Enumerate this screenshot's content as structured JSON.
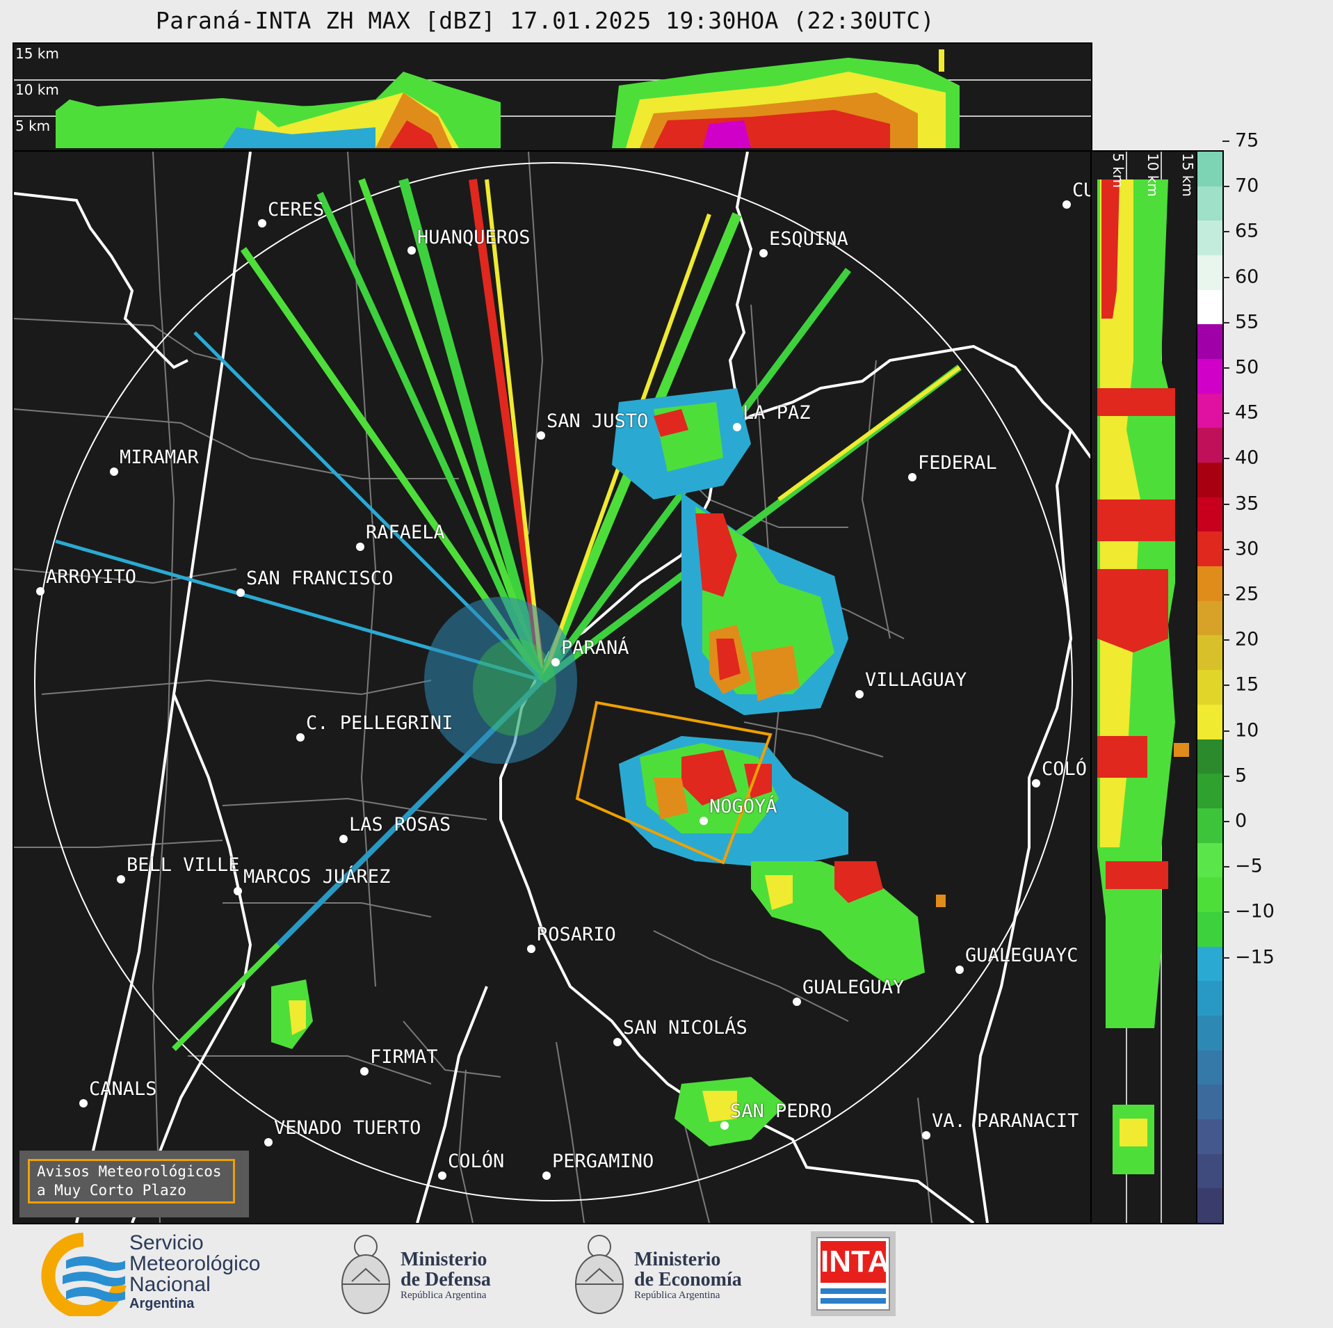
{
  "title": "Paraná-INTA ZH MAX [dBZ] 17.01.2025 19:30HOA (22:30UTC)",
  "top_profile": {
    "altitude_labels": [
      "15 km",
      "10 km",
      "5 km"
    ]
  },
  "right_profile": {
    "altitude_labels": [
      "5 km",
      "10 km",
      "15 km"
    ]
  },
  "colorbar": {
    "unit": "dBZ",
    "ticks": [
      "75",
      "70",
      "65",
      "60",
      "55",
      "50",
      "45",
      "40",
      "35",
      "30",
      "25",
      "20",
      "15",
      "10",
      "5",
      "0",
      "−5",
      "−10",
      "−15"
    ],
    "colors": [
      "#3a3d6b",
      "#3f4a7d",
      "#44588d",
      "#3d6a9c",
      "#3479a8",
      "#2e88b4",
      "#2899c4",
      "#2aaad2",
      "#3ed13e",
      "#4ede3a",
      "#5ae64a",
      "#3ec43a",
      "#2ea12e",
      "#2b8a2b",
      "#f0ea30",
      "#e2d52a",
      "#d8c02a",
      "#d8a228",
      "#e08c1a",
      "#e0281e",
      "#c8001e",
      "#a80010",
      "#c0105a",
      "#e010a0",
      "#d000c8",
      "#a000a8",
      "#ffffff",
      "#e8f6ee",
      "#c4ecdc",
      "#9ee0c8",
      "#7dd4b4"
    ]
  },
  "cities": [
    {
      "name": "CERES"
    },
    {
      "name": "HUANQUEROS"
    },
    {
      "name": "ESQUINA"
    },
    {
      "name": "CU"
    },
    {
      "name": "SAN JUSTO"
    },
    {
      "name": "LA PAZ"
    },
    {
      "name": "MIRAMAR"
    },
    {
      "name": "FEDERAL"
    },
    {
      "name": "RAFAELA"
    },
    {
      "name": "ARROYITO"
    },
    {
      "name": "SAN FRANCISCO"
    },
    {
      "name": "PARANÁ"
    },
    {
      "name": "VILLAGUAY"
    },
    {
      "name": "C. PELLEGRINI"
    },
    {
      "name": "COLÓ"
    },
    {
      "name": "NOGOYÁ"
    },
    {
      "name": "LAS ROSAS"
    },
    {
      "name": "BELL VILLE"
    },
    {
      "name": "MARCOS JUÁREZ"
    },
    {
      "name": "ROSARIO"
    },
    {
      "name": "GUALEGUAYC"
    },
    {
      "name": "GUALEGUAY"
    },
    {
      "name": "SAN NICOLÁS"
    },
    {
      "name": "FIRMAT"
    },
    {
      "name": "CANALS"
    },
    {
      "name": "SAN PEDRO"
    },
    {
      "name": "VENADO TUERTO"
    },
    {
      "name": "VA. PARANACIT"
    },
    {
      "name": "COLÓN"
    },
    {
      "name": "PERGAMINO"
    }
  ],
  "warning_box": {
    "line1": "Avisos Meteorológicos",
    "line2": "a Muy Corto Plazo"
  },
  "logos": {
    "smn": {
      "line1": "Servicio",
      "line2": "Meteorológico",
      "line3": "Nacional",
      "line4": "Argentina"
    },
    "defensa": {
      "line1": "Ministerio",
      "line2": "de Defensa",
      "line3": "República Argentina"
    },
    "economia": {
      "line1": "Ministerio",
      "line2": "de Economía",
      "line3": "República Argentina"
    },
    "inta": {
      "text": "INTA"
    }
  }
}
